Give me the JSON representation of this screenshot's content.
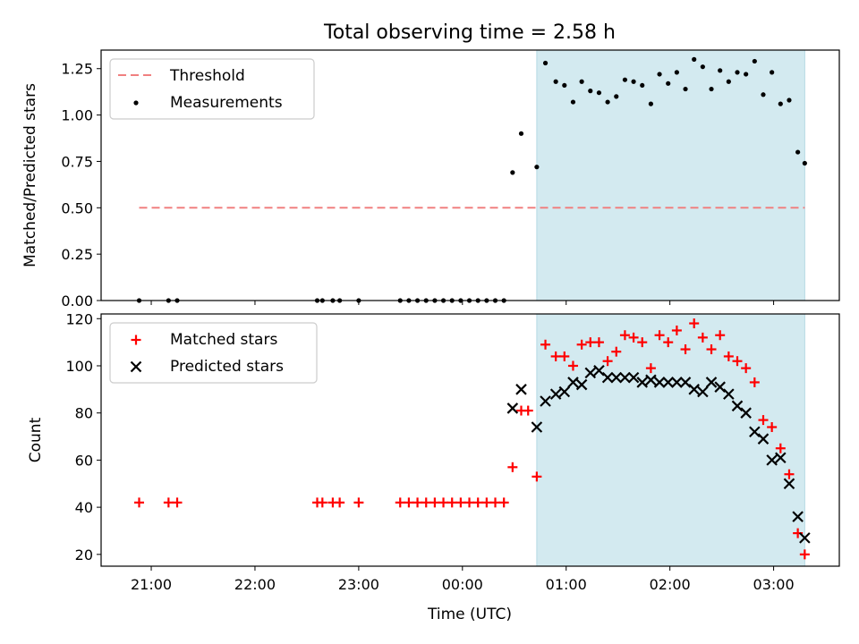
{
  "figure": {
    "title": "Total observing time = 2.58 h",
    "xlabel": "Time (UTC)"
  },
  "colors": {
    "shade": "#d3eaf0",
    "threshold": "#f08080",
    "matched": "#ff0000",
    "predicted": "#000000",
    "measurement": "#000000"
  },
  "chart_data": [
    {
      "type": "scatter",
      "panel": "top",
      "ylabel": "Matched/Predicted stars",
      "xlim": [
        "20:31",
        "03:38"
      ],
      "ylim": [
        0,
        1.35
      ],
      "x_ticks": [
        "21:00",
        "22:00",
        "23:00",
        "00:00",
        "01:00",
        "02:00",
        "03:00"
      ],
      "y_ticks": [
        "0.00",
        "0.25",
        "0.50",
        "0.75",
        "1.00",
        "1.25"
      ],
      "shaded_region": {
        "x_start": "00:43",
        "x_end": "03:18"
      },
      "legend": {
        "position": "top-left",
        "entries": [
          "Threshold",
          "Measurements"
        ]
      },
      "series": [
        {
          "name": "Threshold",
          "style": "dashed-line",
          "x": [
            "20:53",
            "03:18"
          ],
          "y": [
            0.5,
            0.5
          ]
        },
        {
          "name": "Measurements",
          "style": "dot",
          "x": [
            "20:53",
            "21:10",
            "21:15",
            "22:36",
            "22:39",
            "22:45",
            "22:49",
            "23:00",
            "23:24",
            "23:29",
            "23:34",
            "23:39",
            "23:44",
            "23:49",
            "23:54",
            "23:59",
            "00:04",
            "00:09",
            "00:14",
            "00:19",
            "00:24",
            "00:29",
            "00:34",
            "00:43",
            "00:48",
            "00:54",
            "00:59",
            "01:04",
            "01:09",
            "01:14",
            "01:19",
            "01:24",
            "01:29",
            "01:34",
            "01:39",
            "01:44",
            "01:49",
            "01:54",
            "01:59",
            "02:04",
            "02:09",
            "02:14",
            "02:19",
            "02:24",
            "02:29",
            "02:34",
            "02:39",
            "02:44",
            "02:49",
            "02:54",
            "02:59",
            "03:04",
            "03:09",
            "03:14",
            "03:18"
          ],
          "y": [
            0.0,
            0.0,
            0.0,
            0.0,
            0.0,
            0.0,
            0.0,
            0.0,
            0.0,
            0.0,
            0.0,
            0.0,
            0.0,
            0.0,
            0.0,
            0.0,
            0.0,
            0.0,
            0.0,
            0.0,
            0.0,
            0.69,
            0.9,
            0.72,
            1.28,
            1.18,
            1.16,
            1.07,
            1.18,
            1.13,
            1.12,
            1.07,
            1.1,
            1.19,
            1.18,
            1.16,
            1.06,
            1.22,
            1.17,
            1.23,
            1.14,
            1.3,
            1.26,
            1.14,
            1.24,
            1.18,
            1.23,
            1.22,
            1.29,
            1.11,
            1.23,
            1.06,
            1.08,
            0.8,
            0.74
          ]
        }
      ]
    },
    {
      "type": "scatter",
      "panel": "bottom",
      "ylabel": "Count",
      "xlim": [
        "20:31",
        "03:38"
      ],
      "ylim": [
        15,
        122
      ],
      "x_ticks": [
        "21:00",
        "22:00",
        "23:00",
        "00:00",
        "01:00",
        "02:00",
        "03:00"
      ],
      "y_ticks": [
        "20",
        "40",
        "60",
        "80",
        "100",
        "120"
      ],
      "shaded_region": {
        "x_start": "00:43",
        "x_end": "03:18"
      },
      "legend": {
        "position": "top-left",
        "entries": [
          "Matched stars",
          "Predicted stars"
        ]
      },
      "series": [
        {
          "name": "Matched stars",
          "marker": "plus",
          "x": [
            "20:53",
            "21:10",
            "21:15",
            "22:36",
            "22:39",
            "22:45",
            "22:49",
            "23:00",
            "23:24",
            "23:29",
            "23:34",
            "23:39",
            "23:44",
            "23:49",
            "23:54",
            "23:59",
            "00:04",
            "00:09",
            "00:14",
            "00:19",
            "00:24",
            "00:29",
            "00:34",
            "00:38",
            "00:43",
            "00:48",
            "00:54",
            "00:59",
            "01:04",
            "01:09",
            "01:14",
            "01:19",
            "01:24",
            "01:29",
            "01:34",
            "01:39",
            "01:44",
            "01:49",
            "01:54",
            "01:59",
            "02:04",
            "02:09",
            "02:14",
            "02:19",
            "02:24",
            "02:29",
            "02:34",
            "02:39",
            "02:44",
            "02:49",
            "02:54",
            "02:59",
            "03:04",
            "03:09",
            "03:14",
            "03:18"
          ],
          "y": [
            42,
            42,
            42,
            42,
            42,
            42,
            42,
            42,
            42,
            42,
            42,
            42,
            42,
            42,
            42,
            42,
            42,
            42,
            42,
            42,
            42,
            57,
            81,
            81,
            53,
            109,
            104,
            104,
            100,
            109,
            110,
            110,
            102,
            106,
            113,
            112,
            110,
            99,
            113,
            110,
            115,
            107,
            118,
            112,
            107,
            113,
            104,
            102,
            99,
            93,
            77,
            74,
            65,
            54,
            29,
            20
          ]
        },
        {
          "name": "Predicted stars",
          "marker": "x",
          "x": [
            "00:29",
            "00:34",
            "00:43",
            "00:48",
            "00:54",
            "00:59",
            "01:04",
            "01:09",
            "01:14",
            "01:19",
            "01:24",
            "01:29",
            "01:34",
            "01:39",
            "01:44",
            "01:49",
            "01:54",
            "01:59",
            "02:04",
            "02:09",
            "02:14",
            "02:19",
            "02:24",
            "02:29",
            "02:34",
            "02:39",
            "02:44",
            "02:49",
            "02:54",
            "02:59",
            "03:04",
            "03:09",
            "03:14",
            "03:18"
          ],
          "y": [
            82,
            90,
            74,
            85,
            88,
            89,
            93,
            92,
            97,
            98,
            95,
            95,
            95,
            95,
            93,
            94,
            93,
            93,
            93,
            93,
            90,
            89,
            93,
            91,
            88,
            83,
            80,
            72,
            69,
            60,
            61,
            50,
            36,
            27
          ]
        }
      ]
    }
  ]
}
